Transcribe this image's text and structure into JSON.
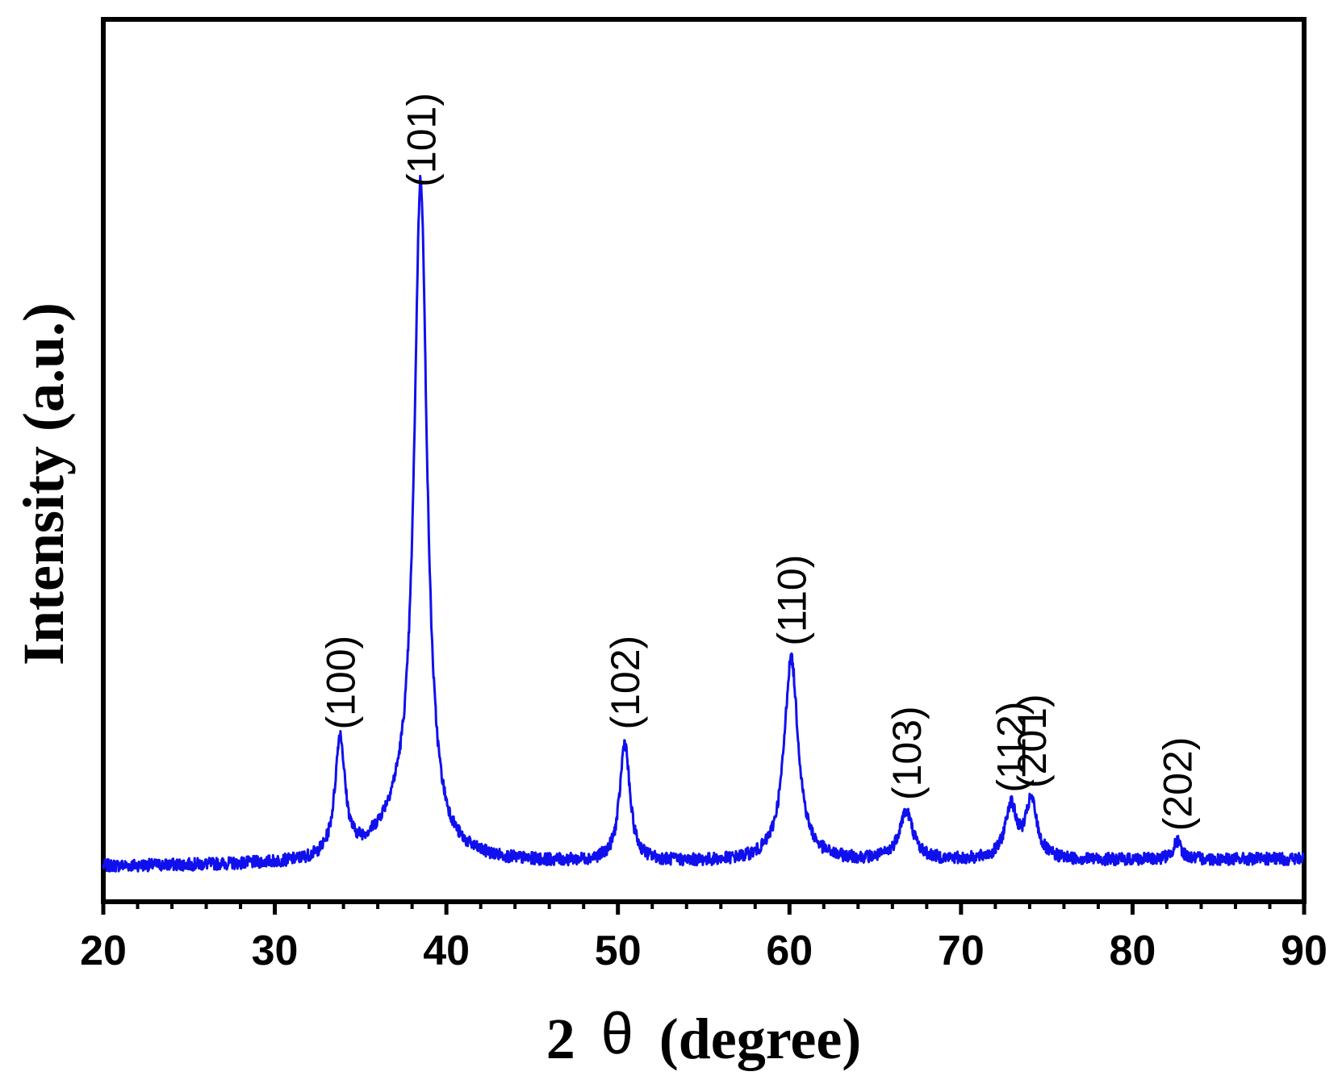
{
  "chart_data": {
    "type": "line",
    "xlabel_prefix": "2",
    "xlabel_symbol": "θ",
    "xlabel_suffix": "(degree)",
    "ylabel": "Intensity (a.u.)",
    "xlim": [
      20,
      90
    ],
    "ylim": [
      0,
      100
    ],
    "x_ticks": [
      "20",
      "30",
      "40",
      "50",
      "60",
      "70",
      "80",
      "90"
    ],
    "x_tick_values": [
      20,
      30,
      40,
      50,
      60,
      70,
      80,
      90
    ],
    "minor_tick_step": 2,
    "y_ticks_shown": false,
    "grid": false,
    "line_color": "#1010ee",
    "baseline": 4,
    "peaks": [
      {
        "label": "(100)",
        "x": 33.8,
        "y": 17.5
      },
      {
        "label": "(101)",
        "x": 38.5,
        "y": 79
      },
      {
        "label": "(102)",
        "x": 50.4,
        "y": 17.5
      },
      {
        "label": "(110)",
        "x": 60.1,
        "y": 27
      },
      {
        "label": "(103)",
        "x": 66.8,
        "y": 9.5
      },
      {
        "label": "(112)",
        "x": 72.9,
        "y": 10
      },
      {
        "label": "(201)",
        "x": 74.1,
        "y": 10.5
      },
      {
        "label": "(202)",
        "x": 82.6,
        "y": 6
      }
    ],
    "series": [
      {
        "values": [
          {
            "x": 20,
            "y": 4
          },
          {
            "x": 30,
            "y": 4.5
          },
          {
            "x": 32.5,
            "y": 5
          },
          {
            "x": 33.8,
            "y": 17.5
          },
          {
            "x": 35,
            "y": 7
          },
          {
            "x": 36.5,
            "y": 9
          },
          {
            "x": 38.5,
            "y": 79
          },
          {
            "x": 40,
            "y": 8
          },
          {
            "x": 45,
            "y": 5
          },
          {
            "x": 50.4,
            "y": 17.5
          },
          {
            "x": 52,
            "y": 5
          },
          {
            "x": 54,
            "y": 5.5
          },
          {
            "x": 58,
            "y": 5
          },
          {
            "x": 60.1,
            "y": 27
          },
          {
            "x": 62,
            "y": 6
          },
          {
            "x": 65,
            "y": 5
          },
          {
            "x": 66.8,
            "y": 9.5
          },
          {
            "x": 69,
            "y": 6
          },
          {
            "x": 71,
            "y": 6.5
          },
          {
            "x": 72.9,
            "y": 10
          },
          {
            "x": 73.5,
            "y": 8.5
          },
          {
            "x": 74.1,
            "y": 10.5
          },
          {
            "x": 76,
            "y": 5.5
          },
          {
            "x": 80,
            "y": 5
          },
          {
            "x": 82.6,
            "y": 6
          },
          {
            "x": 85,
            "y": 4.8
          },
          {
            "x": 90,
            "y": 4.5
          }
        ]
      }
    ]
  }
}
